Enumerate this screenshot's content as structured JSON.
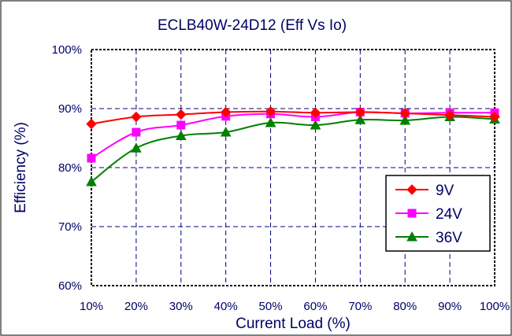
{
  "chart_data": {
    "type": "line",
    "title": "ECLB40W-24D12  (Eff Vs Io)",
    "xlabel": "Current Load (%)",
    "ylabel": "Efficiency (%)",
    "categories": [
      "10%",
      "20%",
      "30%",
      "40%",
      "50%",
      "60%",
      "70%",
      "80%",
      "90%",
      "100%"
    ],
    "y_ticks": [
      "60%",
      "70%",
      "80%",
      "90%",
      "100%"
    ],
    "ylim": [
      60,
      100
    ],
    "grid": true,
    "legend_position": "right",
    "series": [
      {
        "name": "9V",
        "color": "#ff0000",
        "marker": "diamond",
        "values": [
          87.4,
          88.6,
          89.0,
          89.4,
          89.5,
          89.3,
          89.4,
          89.2,
          88.9,
          88.6
        ]
      },
      {
        "name": "24V",
        "color": "#ff00ff",
        "marker": "square",
        "values": [
          81.6,
          86.0,
          87.2,
          88.7,
          89.1,
          88.6,
          89.4,
          89.2,
          89.3,
          89.3
        ]
      },
      {
        "name": "36V",
        "color": "#008000",
        "marker": "triangle",
        "values": [
          77.6,
          83.3,
          85.4,
          86.0,
          87.6,
          87.2,
          88.1,
          88.0,
          88.6,
          88.2
        ]
      }
    ]
  }
}
